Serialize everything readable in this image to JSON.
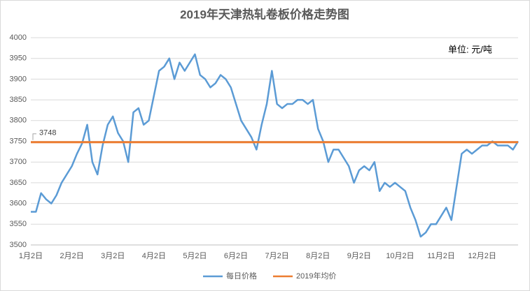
{
  "chart_data": {
    "type": "line",
    "title": "2019年天津热轧卷板价格走势图",
    "unit_note": "单位:  元/吨",
    "categories": [
      "1月2日",
      null,
      null,
      null,
      null,
      null,
      null,
      null,
      "2月2日",
      null,
      null,
      null,
      null,
      null,
      null,
      null,
      "3月2日",
      null,
      null,
      null,
      null,
      null,
      null,
      null,
      "4月2日",
      null,
      null,
      null,
      null,
      null,
      null,
      null,
      "5月2日",
      null,
      null,
      null,
      null,
      null,
      null,
      null,
      "6月2日",
      null,
      null,
      null,
      null,
      null,
      null,
      null,
      "7月2日",
      null,
      null,
      null,
      null,
      null,
      null,
      null,
      "8月2日",
      null,
      null,
      null,
      null,
      null,
      null,
      null,
      "9月2日",
      null,
      null,
      null,
      null,
      null,
      null,
      null,
      "10月2日",
      null,
      null,
      null,
      null,
      null,
      null,
      null,
      "11月2日",
      null,
      null,
      null,
      null,
      null,
      null,
      null,
      "12月2日",
      null,
      null,
      null,
      null,
      null,
      null,
      null
    ],
    "series": [
      {
        "name": "每日价格",
        "color": "#5b9bd5",
        "values": [
          3580,
          3580,
          3625,
          3610,
          3600,
          3620,
          3650,
          3670,
          3690,
          3720,
          3745,
          3790,
          3700,
          3670,
          3740,
          3790,
          3810,
          3770,
          3750,
          3700,
          3820,
          3830,
          3790,
          3800,
          3860,
          3920,
          3930,
          3950,
          3900,
          3940,
          3920,
          3940,
          3960,
          3910,
          3900,
          3880,
          3890,
          3910,
          3900,
          3880,
          3840,
          3800,
          3780,
          3760,
          3730,
          3790,
          3840,
          3920,
          3840,
          3830,
          3840,
          3840,
          3850,
          3850,
          3840,
          3850,
          3780,
          3750,
          3700,
          3730,
          3730,
          3710,
          3690,
          3650,
          3680,
          3690,
          3680,
          3700,
          3630,
          3650,
          3640,
          3650,
          3640,
          3630,
          3590,
          3560,
          3520,
          3530,
          3550,
          3550,
          3570,
          3590,
          3560,
          3640,
          3720,
          3730,
          3720,
          3730,
          3740,
          3740,
          3750,
          3740,
          3740,
          3740,
          3730,
          3750
        ]
      }
    ],
    "average": {
      "name": "2019年均价",
      "color": "#ed7d31",
      "value": 3748
    },
    "ylim": [
      3500,
      4000
    ],
    "yticks": [
      3500,
      3550,
      3600,
      3650,
      3700,
      3750,
      3800,
      3850,
      3900,
      3950,
      4000
    ],
    "grid": true,
    "legend": "bottom"
  }
}
